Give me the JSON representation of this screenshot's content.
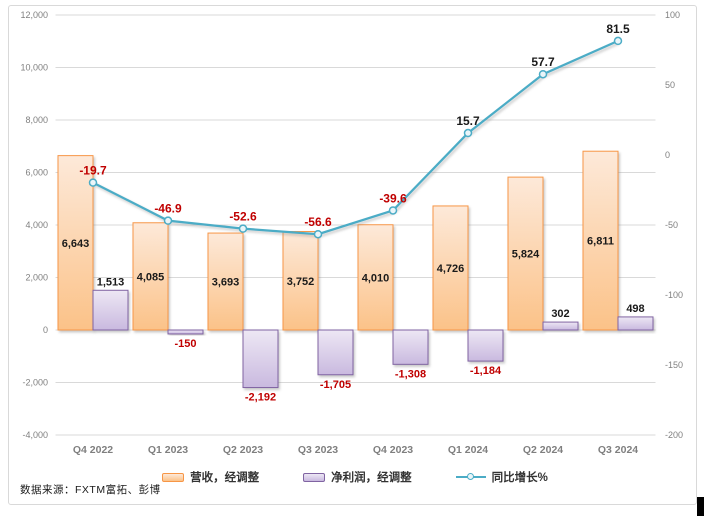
{
  "chart_data": {
    "type": "combo",
    "title": "",
    "categories": [
      "Q4 2022",
      "Q1 2023",
      "Q2 2023",
      "Q3 2023",
      "Q4 2023",
      "Q1 2024",
      "Q2 2024",
      "Q3 2024"
    ],
    "series": [
      {
        "name": "营收，经调整",
        "type": "bar",
        "axis": "left",
        "values": [
          6643,
          4085,
          3693,
          3752,
          4010,
          4726,
          5824,
          6811
        ]
      },
      {
        "name": "净利润，经调整",
        "type": "bar",
        "axis": "left",
        "values": [
          1513,
          -150,
          -2192,
          -1705,
          -1308,
          -1184,
          302,
          498
        ]
      },
      {
        "name": "同比增长%",
        "type": "line",
        "axis": "right",
        "values": [
          -19.7,
          -46.9,
          -52.6,
          -56.6,
          -39.6,
          15.7,
          57.7,
          81.5
        ]
      }
    ],
    "axes": {
      "left": {
        "min": -4000,
        "max": 12000,
        "step": 2000
      },
      "right": {
        "min": -200,
        "max": 100,
        "step": 50
      }
    },
    "grid": true,
    "legend_position": "bottom"
  },
  "legend": {
    "items": [
      {
        "label": "营收，经调整",
        "type": "bar",
        "fill_top": "#FDE9D9",
        "fill_bottom": "#FBC288",
        "border": "#F79646"
      },
      {
        "label": "净利润，经调整",
        "type": "bar",
        "fill_top": "#EDE7F4",
        "fill_bottom": "#C9B9DF",
        "border": "#8064A2"
      },
      {
        "label": "同比增长%",
        "type": "line",
        "color": "#4BACC6"
      }
    ]
  },
  "footer": {
    "source_note": "数据来源：FXTM富拓、彭博"
  },
  "colors": {
    "revenue_border": "#F79646",
    "revenue_fill_top": "#FDE9D9",
    "revenue_fill_bottom": "#FBC288",
    "profit_border": "#8064A2",
    "profit_fill_top": "#EDE7F4",
    "profit_fill_bottom": "#C9B9DF",
    "growth_line": "#4BACC6",
    "marker_fill": "#EAF5F9",
    "label_positive": "#1A1A1A",
    "label_negative": "#C00000",
    "gridline": "#D9D9D9",
    "axis_text": "#808080",
    "category_text": "#7F7F7F"
  }
}
